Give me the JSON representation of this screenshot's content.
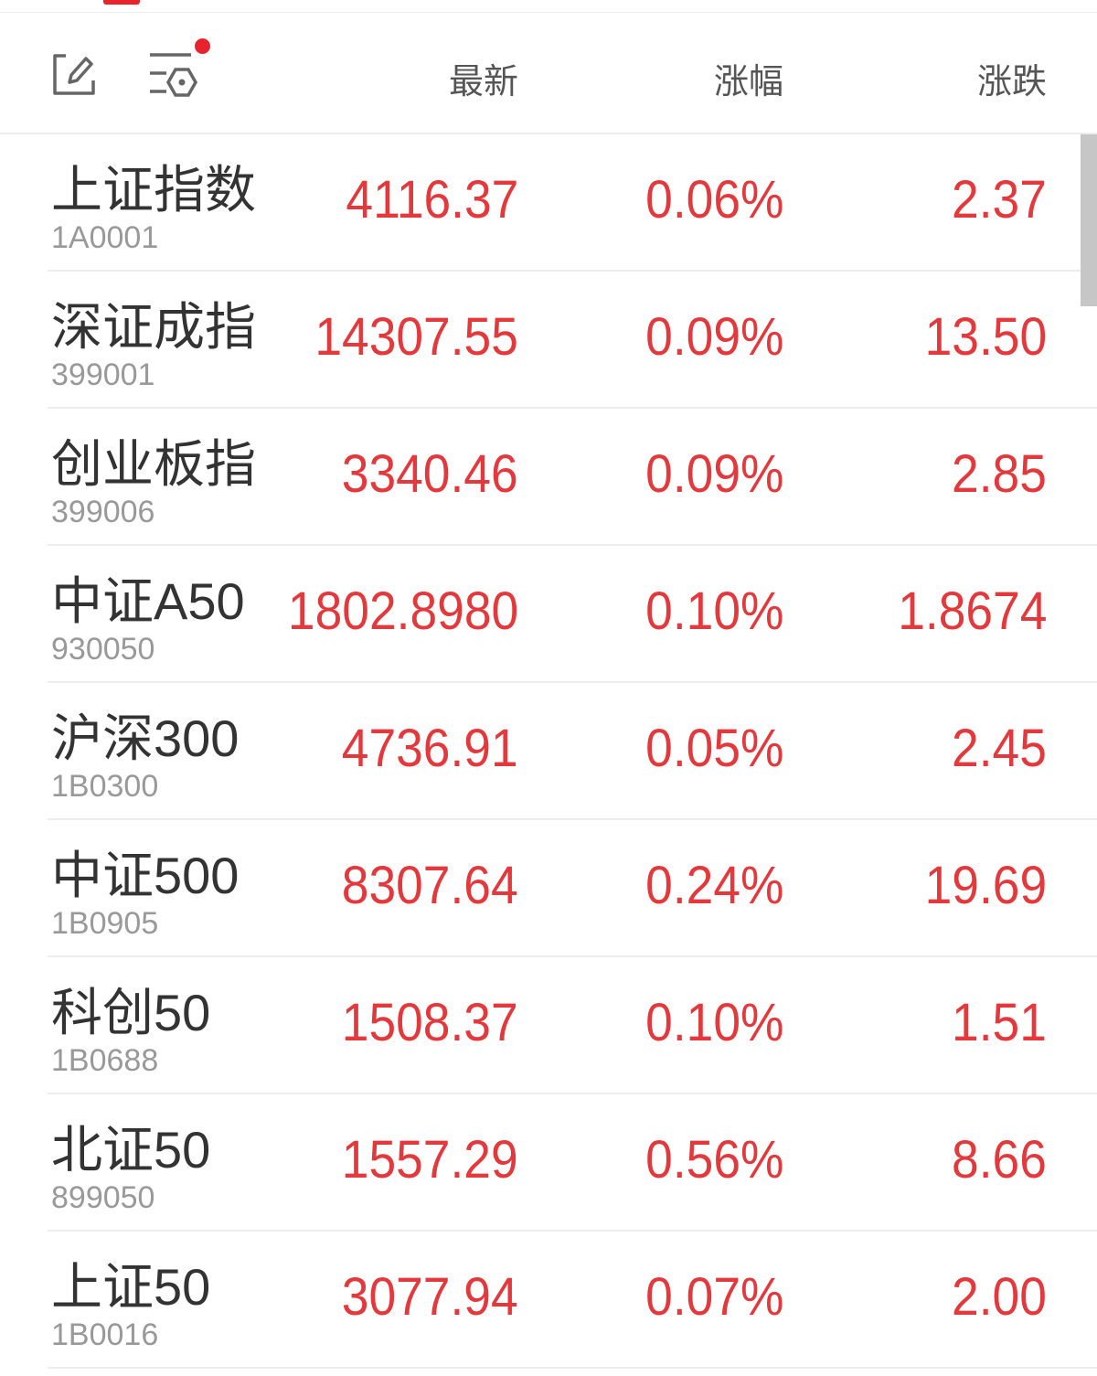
{
  "header": {
    "columns": [
      "最新",
      "涨幅",
      "涨跌"
    ],
    "icons": [
      "edit-icon",
      "filter-settings-icon"
    ],
    "notification_dot_color": "#e8232d"
  },
  "colors": {
    "up": "#e4393c"
  },
  "rows": [
    {
      "name": "上证指数",
      "code": "1A0001",
      "latest": "4116.37",
      "pct": "0.06%",
      "change": "2.37"
    },
    {
      "name": "深证成指",
      "code": "399001",
      "latest": "14307.55",
      "pct": "0.09%",
      "change": "13.50"
    },
    {
      "name": "创业板指",
      "code": "399006",
      "latest": "3340.46",
      "pct": "0.09%",
      "change": "2.85"
    },
    {
      "name": "中证A50",
      "code": "930050",
      "latest": "1802.8980",
      "pct": "0.10%",
      "change": "1.8674"
    },
    {
      "name": "沪深300",
      "code": "1B0300",
      "latest": "4736.91",
      "pct": "0.05%",
      "change": "2.45"
    },
    {
      "name": "中证500",
      "code": "1B0905",
      "latest": "8307.64",
      "pct": "0.24%",
      "change": "19.69"
    },
    {
      "name": "科创50",
      "code": "1B0688",
      "latest": "1508.37",
      "pct": "0.10%",
      "change": "1.51"
    },
    {
      "name": "北证50",
      "code": "899050",
      "latest": "1557.29",
      "pct": "0.56%",
      "change": "8.66"
    },
    {
      "name": "上证50",
      "code": "1B0016",
      "latest": "3077.94",
      "pct": "0.07%",
      "change": "2.00"
    }
  ]
}
